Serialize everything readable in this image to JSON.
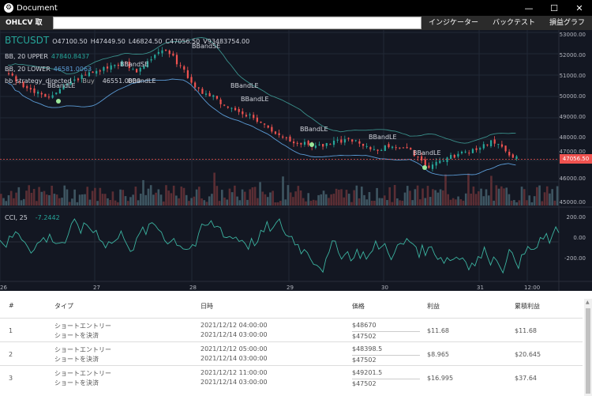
{
  "window": {
    "title": "Document",
    "app_icon": "settings-gear-icon",
    "minimize": "—",
    "maximize": "☐",
    "close": "✕"
  },
  "toolbar": {
    "fetch_label": "OHLCV 取得",
    "symbol_value": "",
    "menu": [
      "インジケーター",
      "バックテスト",
      "損益グラフ"
    ]
  },
  "chart": {
    "symbol": "BTCUSDT",
    "ohlcv": {
      "o": "O47100.50",
      "h": "H47449.50",
      "l": "L46824.50",
      "c": "C47056.50",
      "v": "V93483754.00"
    },
    "bb_upper_label": "BB, 20 UPPER",
    "bb_upper_value": "47840.8437",
    "bb_lower_label": "BB, 20 LOWER",
    "bb_lower_value": "46581.0063",
    "strategy_label": "bb_strategy_directed",
    "strategy_action": "Buy",
    "strategy_value": "46551.0000",
    "cci_label": "CCI, 25",
    "cci_value": "-7.2442",
    "last_price": "47056.50",
    "price_ticks": [
      "53000.00",
      "52000.00",
      "51000.00",
      "50000.00",
      "49000.00",
      "48000.00",
      "47000.00",
      "46000.00",
      "45000.00"
    ],
    "cci_ticks": [
      "200.00",
      "0.00",
      "-200.00"
    ],
    "date_ticks": [
      "26",
      "27",
      "28",
      "29",
      "30",
      "31",
      "12:00"
    ],
    "signal_labels": [
      "BBandSE",
      "BBandSE",
      "BBandLE",
      "BBandLE",
      "BBandLE",
      "BBandLE",
      "BBandLE",
      "BBandLE",
      "BBandLE"
    ]
  },
  "chart_data": {
    "type": "candlestick",
    "symbol": "BTCUSDT",
    "ylim": [
      45000,
      53000
    ],
    "x_ticks": [
      "26",
      "27",
      "28",
      "29",
      "30",
      "31",
      "12:00"
    ],
    "close": [
      51000,
      50600,
      50200,
      50000,
      50300,
      50700,
      51000,
      51200,
      51400,
      51600,
      51100,
      51700,
      52200,
      51800,
      51000,
      50300,
      50000,
      49600,
      49300,
      49100,
      48700,
      48300,
      48000,
      47800,
      47700,
      47700,
      47900,
      48000,
      47600,
      47500,
      47700,
      47600,
      47300,
      46700,
      47000,
      47200,
      47400,
      47600,
      47900,
      47500,
      47100
    ],
    "cci": {
      "name": "CCI, 25",
      "last": -7.2442,
      "ylim": [
        -300,
        250
      ]
    }
  },
  "table": {
    "headers": [
      "#",
      "タイプ",
      "日時",
      "価格",
      "利益",
      "累積利益"
    ],
    "rows": [
      {
        "num": "1",
        "type_entry": "ショートエントリー",
        "type_exit": "ショートを決済",
        "date_entry": "2021/12/12 04:00:00",
        "date_exit": "2021/12/14 03:00:00",
        "price_entry": "$48670",
        "price_exit": "$47502",
        "profit": "$11.68",
        "cumulative": "$11.68"
      },
      {
        "num": "2",
        "type_entry": "ショートエントリー",
        "type_exit": "ショートを決済",
        "date_entry": "2021/12/12 05:00:00",
        "date_exit": "2021/12/14 03:00:00",
        "price_entry": "$48398.5",
        "price_exit": "$47502",
        "profit": "$8.965",
        "cumulative": "$20.645"
      },
      {
        "num": "3",
        "type_entry": "ショートエントリー",
        "type_exit": "ショートを決済",
        "date_entry": "2021/12/12 11:00:00",
        "date_exit": "2021/12/14 03:00:00",
        "price_entry": "$49201.5",
        "price_exit": "$47502",
        "profit": "$16.995",
        "cumulative": "$37.64"
      }
    ]
  },
  "colors": {
    "chart_bg": "#131722",
    "up": "#26a69a",
    "down": "#ef5350",
    "band": "#5b9bd5",
    "cci": "#3bb3a0"
  }
}
